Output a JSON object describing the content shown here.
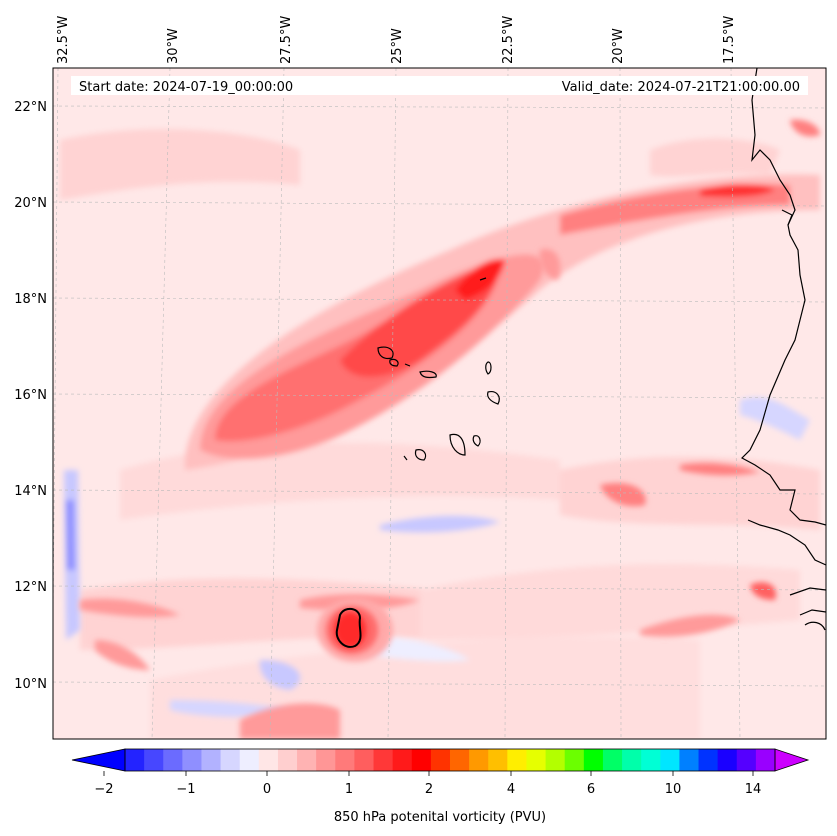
{
  "header": {
    "start_date": "Start date: 2024-07-19_00:00:00",
    "valid_date": "Valid_date: 2024-07-21T21:00:00.00"
  },
  "axes": {
    "lon_labels": [
      "32.5°W",
      "30°W",
      "27.5°W",
      "25°W",
      "22.5°W",
      "20°W",
      "17.5°W"
    ],
    "lat_labels": [
      "22°N",
      "20°N",
      "18°N",
      "16°N",
      "14°N",
      "12°N",
      "10°N"
    ]
  },
  "colorbar": {
    "label": "850 hPa potenital vorticity (PVU)",
    "tick_labels": [
      "−2",
      "−1",
      "0",
      "1",
      "2",
      "4",
      "6",
      "10",
      "14"
    ],
    "colors": [
      "#0000ff",
      "#2323ff",
      "#4747ff",
      "#6b6bff",
      "#8f8fff",
      "#b2b2ff",
      "#d6d6ff",
      "#eeeeff",
      "#ffe6e6",
      "#ffcfcf",
      "#ffb3b3",
      "#ff9696",
      "#ff7a7a",
      "#ff5e5e",
      "#ff3838",
      "#ff1a1a",
      "#ff0000",
      "#ff3300",
      "#ff6600",
      "#ff9900",
      "#ffbf00",
      "#ffee00",
      "#e6ff00",
      "#b3ff00",
      "#6bff00",
      "#00ff00",
      "#00ff66",
      "#00ffaa",
      "#00ffd5",
      "#00e6ff",
      "#0080ff",
      "#0033ff",
      "#1a00ff",
      "#5500ff",
      "#9900ff",
      "#cc00ff"
    ]
  }
}
